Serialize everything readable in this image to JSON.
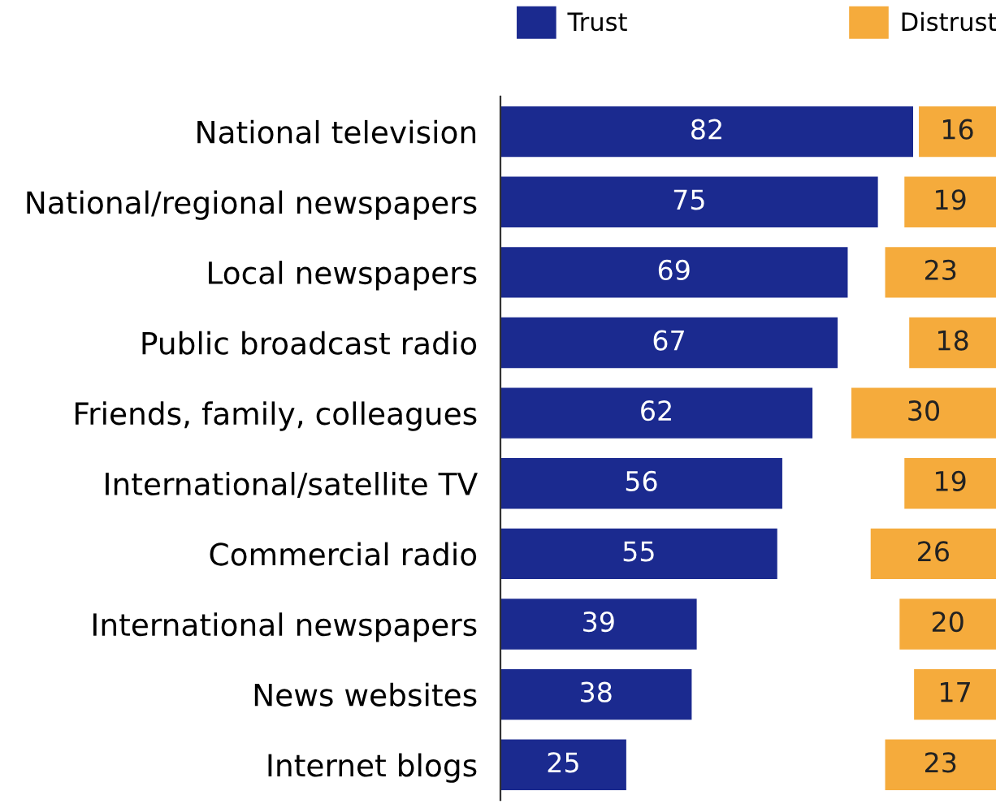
{
  "chart_data": [
    {
      "type": "bar",
      "orientation": "horizontal",
      "categories": [
        "National television",
        "National/regional newspapers",
        "Local newspapers",
        "Public broadcast radio",
        "Friends, family, colleagues",
        "International/satellite TV",
        "Commercial radio",
        "International newspapers",
        "News websites",
        "Internet blogs"
      ],
      "series": [
        {
          "name": "Trust",
          "color": "#1b2a8f",
          "values": [
            82,
            75,
            69,
            67,
            62,
            56,
            55,
            39,
            38,
            25
          ]
        }
      ],
      "xlim": [
        0,
        82
      ],
      "tick_labels": "y",
      "data_labels": true,
      "legend": "top left"
    },
    {
      "type": "bar",
      "orientation": "horizontal",
      "categories": [
        null,
        null,
        null,
        null,
        null,
        null,
        null,
        null,
        null,
        null
      ],
      "series": [
        {
          "name": "Distrust",
          "color": "#f5ab3c",
          "values": [
            16,
            19,
            23,
            18,
            30,
            19,
            26,
            20,
            17,
            23
          ]
        }
      ],
      "xlim": [
        30,
        0
      ],
      "tick_labels": false,
      "data_labels": true,
      "legend": "top"
    }
  ]
}
